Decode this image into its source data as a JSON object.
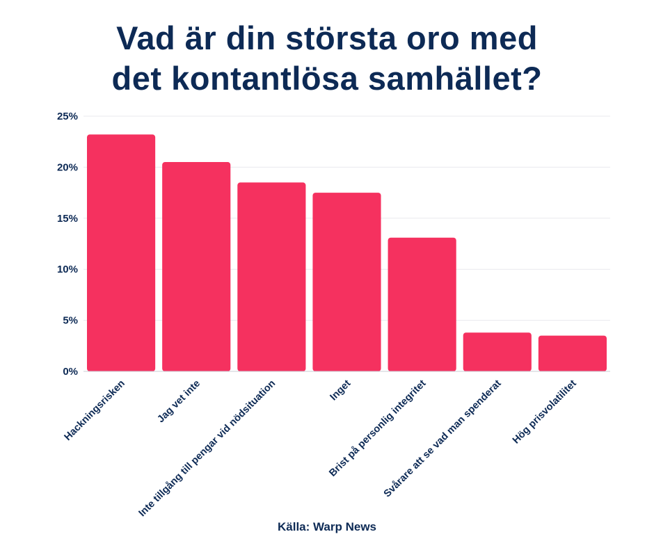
{
  "title_lines": [
    "Vad är din största oro med",
    "det kontantlösa samhället?"
  ],
  "source": "Källa: Warp News",
  "colors": {
    "bar": "#f5315f",
    "text": "#0d2a55",
    "grid": "#e9e9ee"
  },
  "chart_data": {
    "type": "bar",
    "title": "Vad är din största oro med det kontantlösa samhället?",
    "categories": [
      "Hackningsrisken",
      "Jag vet inte",
      "Inte tillgång till pengar vid nödsituation",
      "Inget",
      "Brist på personlig integritet",
      "Svårare att se vad man spenderat",
      "Hög prisvolatilitet"
    ],
    "values": [
      23.2,
      20.5,
      18.5,
      17.5,
      13.1,
      3.8,
      3.5
    ],
    "yticks": [
      "0%",
      "5%",
      "10%",
      "15%",
      "20%",
      "25%"
    ],
    "ylim": [
      0,
      25
    ],
    "xlabel": "",
    "ylabel": "",
    "grid": true
  }
}
